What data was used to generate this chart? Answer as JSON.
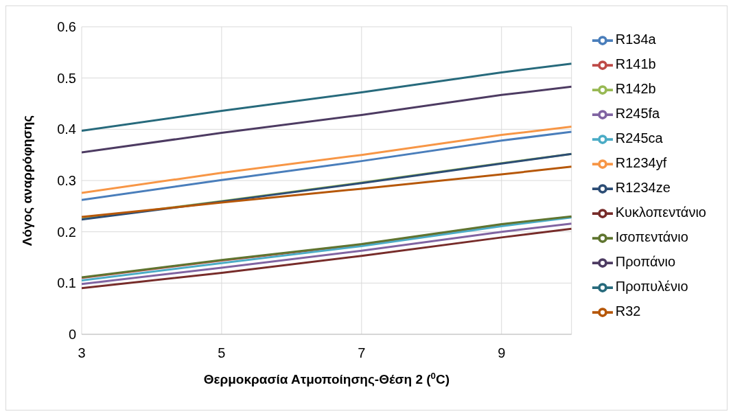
{
  "chart_data": {
    "type": "line",
    "xlabel": "Θερμοκρασία Ατμοποίησης-Θέση 2 ($^{0}$C)",
    "ylabel": "Λόγος αναρρόφησης",
    "x": [
      3,
      5,
      7,
      9,
      10
    ],
    "series": [
      {
        "name": "R134a",
        "color": "#4a7ebb",
        "values": [
          0.262,
          0.301,
          0.338,
          0.378,
          0.395
        ]
      },
      {
        "name": "R141b",
        "color": "#be4b48",
        "values": [
          0.11,
          0.144,
          0.175,
          0.214,
          0.229
        ]
      },
      {
        "name": "R142b",
        "color": "#98b954",
        "values": [
          0.225,
          0.26,
          0.296,
          0.334,
          0.352
        ]
      },
      {
        "name": "R245fa",
        "color": "#8064a2",
        "values": [
          0.098,
          0.13,
          0.163,
          0.2,
          0.216
        ]
      },
      {
        "name": "R245ca",
        "color": "#4bacc6",
        "values": [
          0.105,
          0.139,
          0.172,
          0.211,
          0.228
        ]
      },
      {
        "name": "R1234yf",
        "color": "#f79646",
        "values": [
          0.276,
          0.315,
          0.35,
          0.389,
          0.405
        ]
      },
      {
        "name": "R1234ze",
        "color": "#2c4d75",
        "values": [
          0.224,
          0.259,
          0.295,
          0.333,
          0.352
        ]
      },
      {
        "name": "Κυκλοπεντάνιο",
        "color": "#772c2a",
        "values": [
          0.09,
          0.12,
          0.153,
          0.189,
          0.206
        ]
      },
      {
        "name": "Ισοπεντάνιο",
        "color": "#5f7530",
        "values": [
          0.111,
          0.145,
          0.176,
          0.215,
          0.23
        ]
      },
      {
        "name": "Προπάνιο",
        "color": "#4d3b62",
        "values": [
          0.355,
          0.393,
          0.428,
          0.467,
          0.483
        ]
      },
      {
        "name": "Προπυλένιο",
        "color": "#276a7c",
        "values": [
          0.397,
          0.436,
          0.472,
          0.511,
          0.528
        ]
      },
      {
        "name": "R32",
        "color": "#b65708",
        "values": [
          0.229,
          0.257,
          0.284,
          0.312,
          0.327
        ]
      }
    ],
    "xlim": [
      3,
      10
    ],
    "xticks": [
      3,
      5,
      7,
      9
    ],
    "ylim": [
      0,
      0.6
    ],
    "yticks": [
      0,
      0.1,
      0.2,
      0.3,
      0.4,
      0.5,
      0.6
    ],
    "grid": true,
    "legend": "right",
    "marker": "none",
    "line_style": "solid"
  }
}
